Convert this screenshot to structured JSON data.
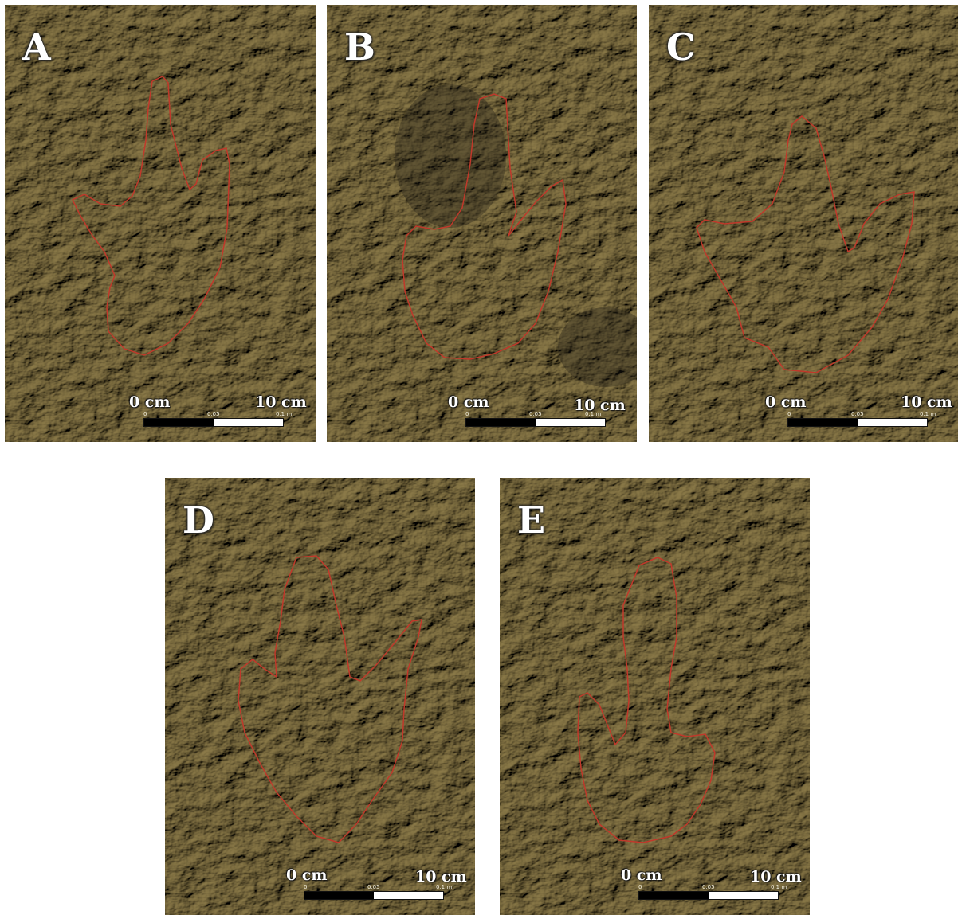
{
  "panels": [
    {
      "letter": "A",
      "scale_left": "0 cm",
      "scale_right": "10 cm",
      "tick_0": "0",
      "tick_mid": "0.05",
      "tick_end": "0.1 m"
    },
    {
      "letter": "B",
      "scale_left": "0 cm",
      "scale_right": "10 cm",
      "tick_0": "0",
      "tick_mid": "0.05",
      "tick_end": "0.1 m"
    },
    {
      "letter": "C",
      "scale_left": "0 cm",
      "scale_right": "10 cm",
      "tick_0": "0",
      "tick_mid": "0.05",
      "tick_end": "0.1 m"
    },
    {
      "letter": "D",
      "scale_left": "0 cm",
      "scale_right": "10 cm",
      "tick_0": "0",
      "tick_mid": "0.05",
      "tick_end": "0.1 m"
    },
    {
      "letter": "E",
      "scale_left": "0 cm",
      "scale_right": "10 cm",
      "tick_0": "0",
      "tick_mid": "0.05",
      "tick_end": "0.1 m"
    }
  ],
  "colors": {
    "terrain_base": "#8a7f62",
    "terrain_light": "#d8cc98",
    "terrain_dark": "#2e2b22",
    "outline": "#c0392b"
  }
}
